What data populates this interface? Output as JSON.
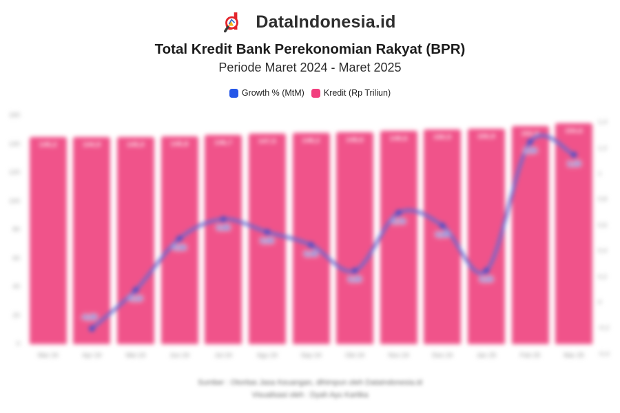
{
  "header": {
    "brand": "DataIndonesia.id",
    "title": "Total Kredit Bank Perekonomian Rakyat (BPR)",
    "subtitle": "Periode Maret 2024 - Maret 2025"
  },
  "legend": [
    {
      "label": "Growth % (MtM)",
      "color": "#2456E8"
    },
    {
      "label": "Kredit (Rp Triliun)",
      "color": "#F23E7E"
    }
  ],
  "footer": {
    "line1": "Sumber : Otoritas Jasa Keuangan, dihimpun oleh DataIndonesia.id",
    "line2": "Visualisasi oleh : Dyah Ayu Kartika"
  },
  "chart_data": {
    "type": "combo-bar-line",
    "title": "Total Kredit Bank Perekonomian Rakyat (BPR)",
    "subtitle": "Periode Maret 2024 - Maret 2025",
    "categories": [
      "Mar 24",
      "Apr 24",
      "Mei 24",
      "Jun 24",
      "Jul 24",
      "Agu 24",
      "Sep 24",
      "Okt 24",
      "Nov 24",
      "Des 24",
      "Jan 25",
      "Feb 25",
      "Mar 25"
    ],
    "bar_series": {
      "name": "Kredit (Rp Triliun)",
      "axis": "left",
      "values": [
        145.2,
        144.9,
        145.0,
        145.8,
        146.7,
        147.5,
        148.2,
        148.6,
        149.6,
        150.5,
        150.9,
        152.8,
        154.6
      ],
      "labels": [
        "145,2",
        "144,9",
        "145,0",
        "145,8",
        "146,7",
        "147,5",
        "148,2",
        "148,6",
        "149,6",
        "150,5",
        "150,9",
        "152,8",
        "154,6"
      ],
      "color": "#F0538A"
    },
    "line_series": {
      "name": "Growth % (MtM)",
      "axis": "right",
      "start_category_index": 1,
      "values": [
        -0.2,
        0.1,
        0.5,
        0.65,
        0.55,
        0.45,
        0.25,
        0.7,
        0.6,
        0.25,
        1.25,
        1.15
      ],
      "labels": [
        "-0,20",
        "0,10",
        "0,50",
        "0,65",
        "0,55",
        "0,45",
        "0,25",
        "0,70",
        "0,60",
        "0,25",
        "1,25",
        "1,15"
      ],
      "line_color": "#5F6BD6",
      "dot_color": "#4050CE",
      "label_color": "#4254D4"
    },
    "left_axis": {
      "range": [
        0,
        160
      ],
      "ticks": [
        160,
        140,
        120,
        100,
        80,
        60,
        40,
        20,
        0
      ],
      "labels": [
        "160",
        "140",
        "120",
        "100",
        "80",
        "60",
        "40",
        "20",
        "0"
      ]
    },
    "right_axis": {
      "range": [
        -0.4,
        1.4
      ],
      "ticks": [
        1.4,
        1.2,
        1.0,
        0.8,
        0.6,
        0.4,
        0.2,
        0,
        -0.2,
        -0.4
      ],
      "labels": [
        "1,4",
        "1,2",
        "1",
        "0,8",
        "0,6",
        "0,4",
        "0,2",
        "0",
        "-0,2",
        "-0,4"
      ]
    },
    "grid": "off",
    "legend_position": "top"
  }
}
